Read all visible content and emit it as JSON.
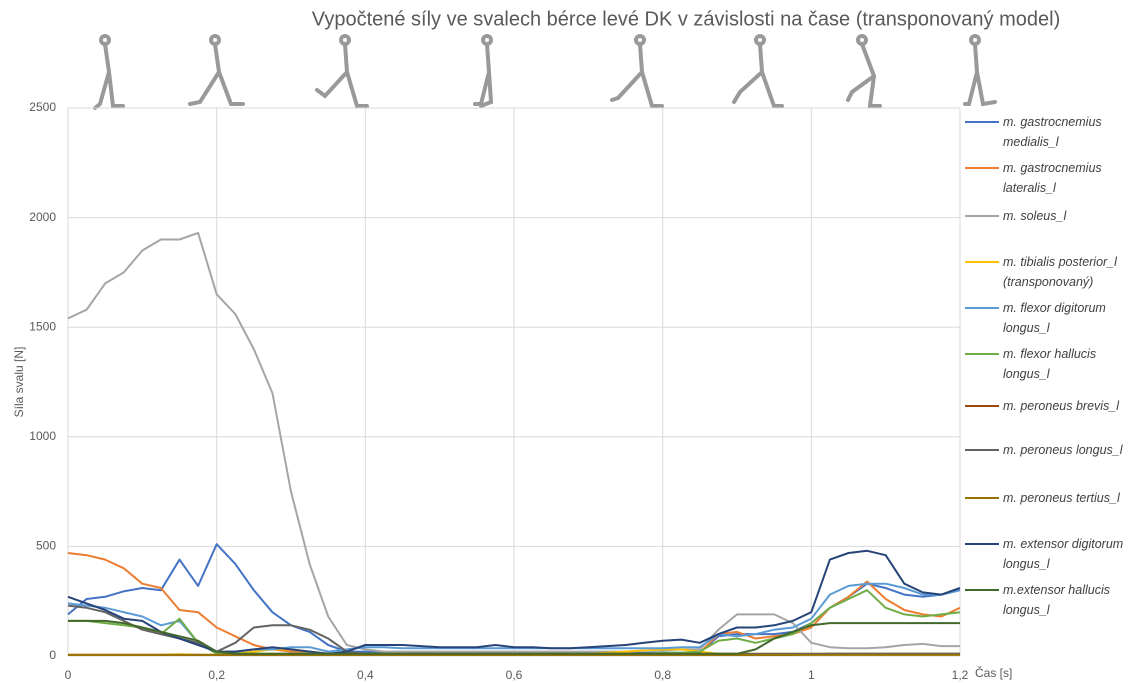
{
  "chart_data": {
    "type": "line",
    "title": "Vypočtené síly ve svalech bérce levé DK v závislosti na čase (transponovaný model)",
    "x_label": "Čas [s]",
    "y_label": "Síla svalu [N]",
    "x": [
      0,
      0.025,
      0.05,
      0.075,
      0.1,
      0.125,
      0.15,
      0.175,
      0.2,
      0.225,
      0.25,
      0.275,
      0.3,
      0.325,
      0.35,
      0.375,
      0.4,
      0.425,
      0.45,
      0.475,
      0.5,
      0.525,
      0.55,
      0.575,
      0.6,
      0.625,
      0.65,
      0.675,
      0.7,
      0.725,
      0.75,
      0.775,
      0.8,
      0.825,
      0.85,
      0.875,
      0.9,
      0.925,
      0.95,
      0.975,
      1.0,
      1.025,
      1.05,
      1.075,
      1.1,
      1.125,
      1.15,
      1.175,
      1.2
    ],
    "xlim": [
      0,
      1.2
    ],
    "xticks": [
      {
        "value": 0,
        "label": "0"
      },
      {
        "value": 0.2,
        "label": "0,2"
      },
      {
        "value": 0.4,
        "label": "0,4"
      },
      {
        "value": 0.6,
        "label": "0,6"
      },
      {
        "value": 0.8,
        "label": "0,8"
      },
      {
        "value": 1,
        "label": "1"
      },
      {
        "value": 1.2,
        "label": "1,2"
      }
    ],
    "ylim": [
      0,
      2500
    ],
    "yticks": [
      0,
      500,
      1000,
      1500,
      2000,
      2500
    ],
    "grid": true,
    "series": [
      {
        "name": "m. gastrocnemius medialis_l",
        "color": "#4472c4",
        "values": [
          190,
          260,
          270,
          295,
          310,
          300,
          440,
          320,
          510,
          420,
          300,
          200,
          140,
          110,
          50,
          20,
          20,
          15,
          15,
          15,
          15,
          15,
          15,
          15,
          15,
          15,
          15,
          15,
          15,
          15,
          15,
          15,
          15,
          15,
          15,
          90,
          100,
          100,
          100,
          110,
          150,
          220,
          270,
          330,
          310,
          280,
          270,
          280,
          300
        ]
      },
      {
        "name": "m. gastrocnemius lateralis_l",
        "color": "#ed7d31",
        "values": [
          470,
          460,
          440,
          400,
          330,
          310,
          210,
          200,
          130,
          90,
          50,
          30,
          20,
          20,
          10,
          10,
          10,
          10,
          10,
          10,
          10,
          10,
          10,
          10,
          10,
          10,
          10,
          10,
          10,
          10,
          10,
          10,
          10,
          10,
          15,
          100,
          110,
          80,
          90,
          100,
          130,
          220,
          270,
          340,
          260,
          210,
          190,
          180,
          220
        ]
      },
      {
        "name": "m. soleus_l",
        "color": "#a5a5a5",
        "values": [
          1540,
          1580,
          1700,
          1750,
          1850,
          1900,
          1900,
          1930,
          1650,
          1560,
          1400,
          1200,
          750,
          420,
          180,
          50,
          30,
          20,
          20,
          20,
          20,
          20,
          20,
          20,
          20,
          20,
          20,
          20,
          20,
          20,
          20,
          25,
          25,
          30,
          30,
          120,
          190,
          190,
          190,
          150,
          60,
          40,
          35,
          35,
          40,
          50,
          55,
          45,
          45
        ]
      },
      {
        "name": "m. tibialis posterior_l (transponovaný)",
        "color": "#ffc000",
        "values": [
          5,
          5,
          5,
          5,
          5,
          5,
          8,
          5,
          5,
          10,
          20,
          30,
          30,
          20,
          10,
          10,
          10,
          10,
          10,
          10,
          10,
          10,
          10,
          10,
          10,
          10,
          10,
          10,
          10,
          15,
          20,
          25,
          30,
          30,
          20,
          10,
          10,
          10,
          10,
          10,
          10,
          10,
          10,
          10,
          10,
          10,
          10,
          10,
          10
        ]
      },
      {
        "name": "m. flexor digitorum longus_l",
        "color": "#5b9bd5",
        "values": [
          240,
          230,
          220,
          200,
          180,
          140,
          160,
          60,
          20,
          20,
          30,
          30,
          40,
          40,
          20,
          30,
          40,
          40,
          35,
          35,
          35,
          35,
          35,
          35,
          35,
          35,
          35,
          35,
          35,
          35,
          35,
          35,
          35,
          40,
          40,
          100,
          90,
          100,
          120,
          130,
          170,
          280,
          320,
          330,
          330,
          310,
          280,
          280,
          300
        ]
      },
      {
        "name": "m. flexor hallucis longus_l",
        "color": "#70ad47",
        "values": [
          160,
          160,
          150,
          140,
          130,
          100,
          170,
          60,
          10,
          10,
          10,
          10,
          10,
          10,
          10,
          10,
          10,
          10,
          10,
          10,
          10,
          10,
          10,
          10,
          10,
          10,
          10,
          10,
          10,
          10,
          10,
          10,
          15,
          15,
          20,
          70,
          80,
          60,
          80,
          100,
          150,
          220,
          260,
          300,
          220,
          190,
          180,
          190,
          200
        ]
      },
      {
        "name": "m. peroneus brevis_l",
        "color": "#9e480e",
        "values": [
          5,
          5,
          5,
          5,
          5,
          5,
          5,
          5,
          5,
          5,
          5,
          5,
          5,
          5,
          5,
          5,
          5,
          5,
          5,
          5,
          5,
          5,
          5,
          5,
          5,
          5,
          5,
          5,
          5,
          5,
          5,
          5,
          5,
          5,
          5,
          5,
          5,
          5,
          5,
          5,
          8,
          10,
          10,
          10,
          10,
          10,
          10,
          10,
          10
        ]
      },
      {
        "name": "m. peroneus longus_l",
        "color": "#636363",
        "values": [
          230,
          220,
          200,
          160,
          120,
          100,
          80,
          60,
          20,
          60,
          130,
          140,
          140,
          120,
          80,
          20,
          10,
          10,
          10,
          10,
          10,
          10,
          10,
          10,
          10,
          10,
          10,
          10,
          10,
          10,
          10,
          10,
          10,
          10,
          10,
          10,
          10,
          10,
          10,
          10,
          10,
          10,
          10,
          10,
          10,
          10,
          10,
          10,
          10
        ]
      },
      {
        "name": "m. peroneus tertius_l",
        "color": "#997300",
        "values": [
          5,
          5,
          5,
          5,
          5,
          5,
          5,
          5,
          5,
          5,
          5,
          5,
          5,
          5,
          5,
          5,
          5,
          5,
          5,
          5,
          5,
          5,
          5,
          5,
          5,
          5,
          5,
          5,
          5,
          5,
          5,
          5,
          5,
          5,
          5,
          5,
          5,
          5,
          5,
          5,
          5,
          5,
          5,
          5,
          5,
          5,
          5,
          5,
          5
        ]
      },
      {
        "name": "m. extensor digitorum longus_l",
        "color": "#264478",
        "values": [
          270,
          240,
          210,
          170,
          160,
          110,
          80,
          50,
          20,
          20,
          30,
          40,
          30,
          20,
          10,
          20,
          50,
          50,
          50,
          45,
          40,
          40,
          40,
          50,
          40,
          40,
          35,
          35,
          40,
          45,
          50,
          60,
          70,
          75,
          60,
          100,
          130,
          130,
          140,
          160,
          200,
          440,
          470,
          480,
          460,
          330,
          290,
          280,
          310
        ]
      },
      {
        "name": "m.extensor hallucis longus_l",
        "color": "#43682b",
        "values": [
          160,
          160,
          160,
          150,
          130,
          110,
          90,
          70,
          20,
          10,
          10,
          10,
          10,
          10,
          10,
          10,
          10,
          10,
          10,
          10,
          10,
          10,
          10,
          10,
          10,
          10,
          10,
          10,
          10,
          10,
          10,
          10,
          10,
          10,
          10,
          10,
          10,
          30,
          80,
          110,
          140,
          150,
          150,
          150,
          150,
          150,
          150,
          150,
          150
        ]
      }
    ]
  }
}
